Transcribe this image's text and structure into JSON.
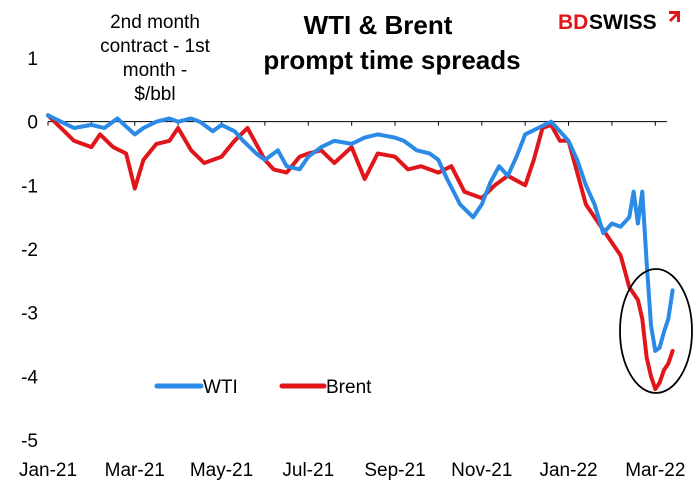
{
  "brand": {
    "part1": "BD",
    "part2": "SWISS"
  },
  "chart_data": {
    "type": "line",
    "title": [
      "WTI & Brent",
      "prompt time spreads"
    ],
    "ylabel": [
      "2nd month",
      "contract - 1st",
      "month -",
      "$/bbl"
    ],
    "xlabel": "",
    "ylim": [
      -5,
      1
    ],
    "yticks": [
      1,
      0,
      -1,
      -2,
      -3,
      -4,
      -5
    ],
    "xlim": [
      0,
      14.8
    ],
    "xticks": [
      "Jan-21",
      "Mar-21",
      "May-21",
      "Jul-21",
      "Sep-21",
      "Nov-21",
      "Jan-22",
      "Mar-22"
    ],
    "grid": false,
    "legend_position": "bottom-left",
    "colors": {
      "WTI": "#2a8ae6",
      "Brent": "#e0161b",
      "annotation": "#000000"
    },
    "annotation": {
      "type": "ellipse",
      "note": "circle around Mar-22 lows"
    },
    "series": [
      {
        "name": "WTI",
        "x": [
          0,
          0.3,
          0.6,
          1.0,
          1.3,
          1.6,
          2.0,
          2.2,
          2.5,
          2.8,
          3.0,
          3.3,
          3.5,
          3.8,
          4.0,
          4.3,
          4.5,
          4.8,
          5.0,
          5.3,
          5.5,
          5.8,
          6.0,
          6.3,
          6.6,
          7.0,
          7.3,
          7.6,
          8.0,
          8.2,
          8.5,
          8.8,
          9.0,
          9.2,
          9.5,
          9.8,
          10.0,
          10.2,
          10.4,
          10.6,
          10.8,
          11.0,
          11.3,
          11.6,
          12.0,
          12.2,
          12.4,
          12.6,
          12.8,
          13.0,
          13.2,
          13.4,
          13.5,
          13.6,
          13.7,
          13.8,
          13.9,
          14.0,
          14.1,
          14.2,
          14.3,
          14.4
        ],
        "values": [
          0.1,
          0.0,
          -0.1,
          -0.05,
          -0.1,
          0.05,
          -0.2,
          -0.1,
          0.0,
          0.05,
          0.0,
          0.05,
          0.0,
          -0.15,
          -0.05,
          -0.15,
          -0.3,
          -0.5,
          -0.6,
          -0.45,
          -0.7,
          -0.75,
          -0.55,
          -0.4,
          -0.3,
          -0.35,
          -0.25,
          -0.2,
          -0.25,
          -0.3,
          -0.45,
          -0.5,
          -0.6,
          -0.9,
          -1.3,
          -1.5,
          -1.3,
          -0.95,
          -0.7,
          -0.85,
          -0.55,
          -0.2,
          -0.1,
          0.0,
          -0.3,
          -0.6,
          -1.0,
          -1.3,
          -1.75,
          -1.6,
          -1.65,
          -1.5,
          -1.1,
          -1.6,
          -1.1,
          -2.2,
          -3.2,
          -3.6,
          -3.55,
          -3.3,
          -3.1,
          -2.65
        ]
      },
      {
        "name": "Brent",
        "x": [
          0,
          0.3,
          0.6,
          1.0,
          1.2,
          1.5,
          1.8,
          2.0,
          2.2,
          2.5,
          2.8,
          3.0,
          3.3,
          3.6,
          4.0,
          4.3,
          4.6,
          5.0,
          5.2,
          5.5,
          5.8,
          6.0,
          6.3,
          6.6,
          7.0,
          7.3,
          7.6,
          8.0,
          8.3,
          8.6,
          9.0,
          9.3,
          9.6,
          10.0,
          10.3,
          10.6,
          11.0,
          11.2,
          11.4,
          11.6,
          11.8,
          12.0,
          12.2,
          12.4,
          12.6,
          12.8,
          13.0,
          13.2,
          13.4,
          13.6,
          13.7,
          13.8,
          13.9,
          14.0,
          14.1,
          14.2,
          14.3,
          14.4
        ],
        "values": [
          0.1,
          -0.1,
          -0.3,
          -0.4,
          -0.2,
          -0.4,
          -0.5,
          -1.05,
          -0.6,
          -0.35,
          -0.3,
          -0.1,
          -0.45,
          -0.65,
          -0.55,
          -0.3,
          -0.1,
          -0.6,
          -0.75,
          -0.8,
          -0.55,
          -0.5,
          -0.45,
          -0.65,
          -0.4,
          -0.9,
          -0.5,
          -0.55,
          -0.75,
          -0.7,
          -0.8,
          -0.7,
          -1.1,
          -1.2,
          -1.0,
          -0.85,
          -1.0,
          -0.6,
          -0.1,
          -0.05,
          -0.3,
          -0.3,
          -0.8,
          -1.3,
          -1.5,
          -1.7,
          -1.9,
          -2.1,
          -2.6,
          -2.8,
          -3.1,
          -3.7,
          -4.0,
          -4.2,
          -4.1,
          -3.9,
          -3.8,
          -3.6
        ]
      }
    ]
  }
}
